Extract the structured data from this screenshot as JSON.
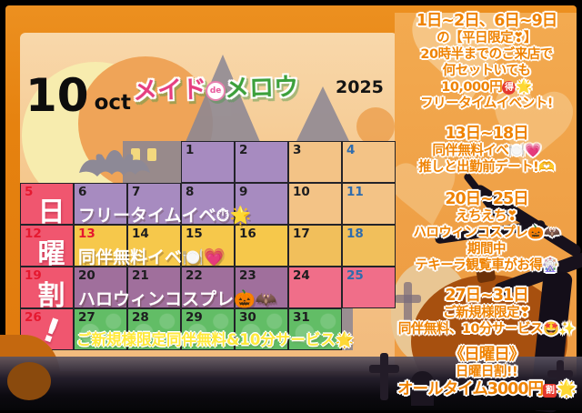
{
  "header": {
    "month_number": "10",
    "month_name": "oct",
    "year": "2025"
  },
  "logo": {
    "part1": "メイド",
    "part2": "de",
    "part3": "メロウ"
  },
  "calendar": {
    "sunday_column_chars": [
      "日",
      "曜",
      "割",
      "!"
    ],
    "rows": [
      {
        "cells": [
          null,
          null,
          null,
          {
            "d": "1",
            "c": "purple"
          },
          {
            "d": "2",
            "c": "purple"
          },
          {
            "d": "3",
            "c": "tan"
          },
          {
            "d": "4",
            "c": "tan",
            "n": "b"
          }
        ]
      },
      {
        "cells": [
          {
            "d": "5",
            "c": "red",
            "n": "r",
            "ch": "日"
          },
          {
            "d": "6",
            "c": "purple"
          },
          {
            "d": "7",
            "c": "purple"
          },
          {
            "d": "8",
            "c": "purple"
          },
          {
            "d": "9",
            "c": "purple"
          },
          {
            "d": "10",
            "c": "tan"
          },
          {
            "d": "11",
            "c": "tan",
            "n": "b"
          }
        ]
      },
      {
        "cells": [
          {
            "d": "12",
            "c": "red",
            "n": "r",
            "ch": "曜"
          },
          {
            "d": "13",
            "c": "yellow",
            "n": "r"
          },
          {
            "d": "14",
            "c": "yellow"
          },
          {
            "d": "15",
            "c": "yellow"
          },
          {
            "d": "16",
            "c": "yellow"
          },
          {
            "d": "17",
            "c": "yellow2"
          },
          {
            "d": "18",
            "c": "yellow2",
            "n": "b"
          }
        ]
      },
      {
        "cells": [
          {
            "d": "19",
            "c": "red",
            "n": "r",
            "ch": "割"
          },
          {
            "d": "20",
            "c": "mauve"
          },
          {
            "d": "21",
            "c": "mauve"
          },
          {
            "d": "22",
            "c": "mauve"
          },
          {
            "d": "23",
            "c": "mauve"
          },
          {
            "d": "24",
            "c": "pink"
          },
          {
            "d": "25",
            "c": "pink",
            "n": "b"
          }
        ]
      },
      {
        "cells": [
          {
            "d": "26",
            "c": "red",
            "n": "r",
            "ch": "!"
          },
          {
            "d": "27",
            "c": "green"
          },
          {
            "d": "28",
            "c": "green"
          },
          {
            "d": "29",
            "c": "green"
          },
          {
            "d": "30",
            "c": "green"
          },
          {
            "d": "31",
            "c": "green"
          },
          null
        ]
      }
    ],
    "events": [
      {
        "row": 1,
        "style": "white",
        "text": "フリータイムイベ⏱🌟"
      },
      {
        "row": 2,
        "style": "white",
        "text": "同伴無料イベ🍽️💗"
      },
      {
        "row": 3,
        "style": "white",
        "text": "ハロウィンコスプレ🎃🦇"
      },
      {
        "row": 4,
        "style": "yellow",
        "text": "ご新規様限定同伴無料&10分サービス🌟"
      }
    ]
  },
  "notes": [
    {
      "lines": [
        {
          "text": "1日~2日、6日~9日",
          "big": true
        },
        {
          "text": "の【平日限定❣】"
        },
        {
          "text": "20時半までのご来店で"
        },
        {
          "text": "何セットいても"
        },
        {
          "text": "10,000円🉐🌟"
        },
        {
          "text": "フリータイムイベント!"
        }
      ]
    },
    {
      "lines": [
        {
          "text": "13日~18日",
          "big": true
        },
        {
          "text": "同伴無料イベ🍽️💗"
        },
        {
          "text": "推しと出勤前デート!🫶"
        }
      ]
    },
    {
      "lines": [
        {
          "text": "20日~25日",
          "big": true
        },
        {
          "text": "えちえち❣"
        },
        {
          "text": "ハロウィンコスプレ🎃🦇"
        },
        {
          "text": "期間中"
        },
        {
          "text": "テキーラ観覧車がお得🎡"
        }
      ]
    },
    {
      "lines": [
        {
          "text": "27日~31日",
          "big": true
        },
        {
          "text": "ご新規様限定❣"
        },
        {
          "text": "同伴無料、10分サービス🤩✨"
        }
      ]
    },
    {
      "lines": [
        {
          "text": "《日曜日》",
          "big": true
        },
        {
          "text": "日曜日割!!"
        },
        {
          "text": "オールタイム3000円🈹🌟",
          "big": true
        }
      ]
    }
  ],
  "colors": {
    "frame_orange": "#e6820f",
    "interior_peach": "#f5c78c",
    "panel_orange": "#efa046",
    "sunday_cell": "#f0566f",
    "event_purple": "#a78bc0",
    "event_yellow": "#f6c84b",
    "event_pink": "#f06e89",
    "event_mauve": "#a06f9c",
    "event_green": "#62bd66",
    "saturday_blue": "#2f6cad",
    "holiday_red": "#e5182f",
    "note_orange": "#ef8303"
  }
}
